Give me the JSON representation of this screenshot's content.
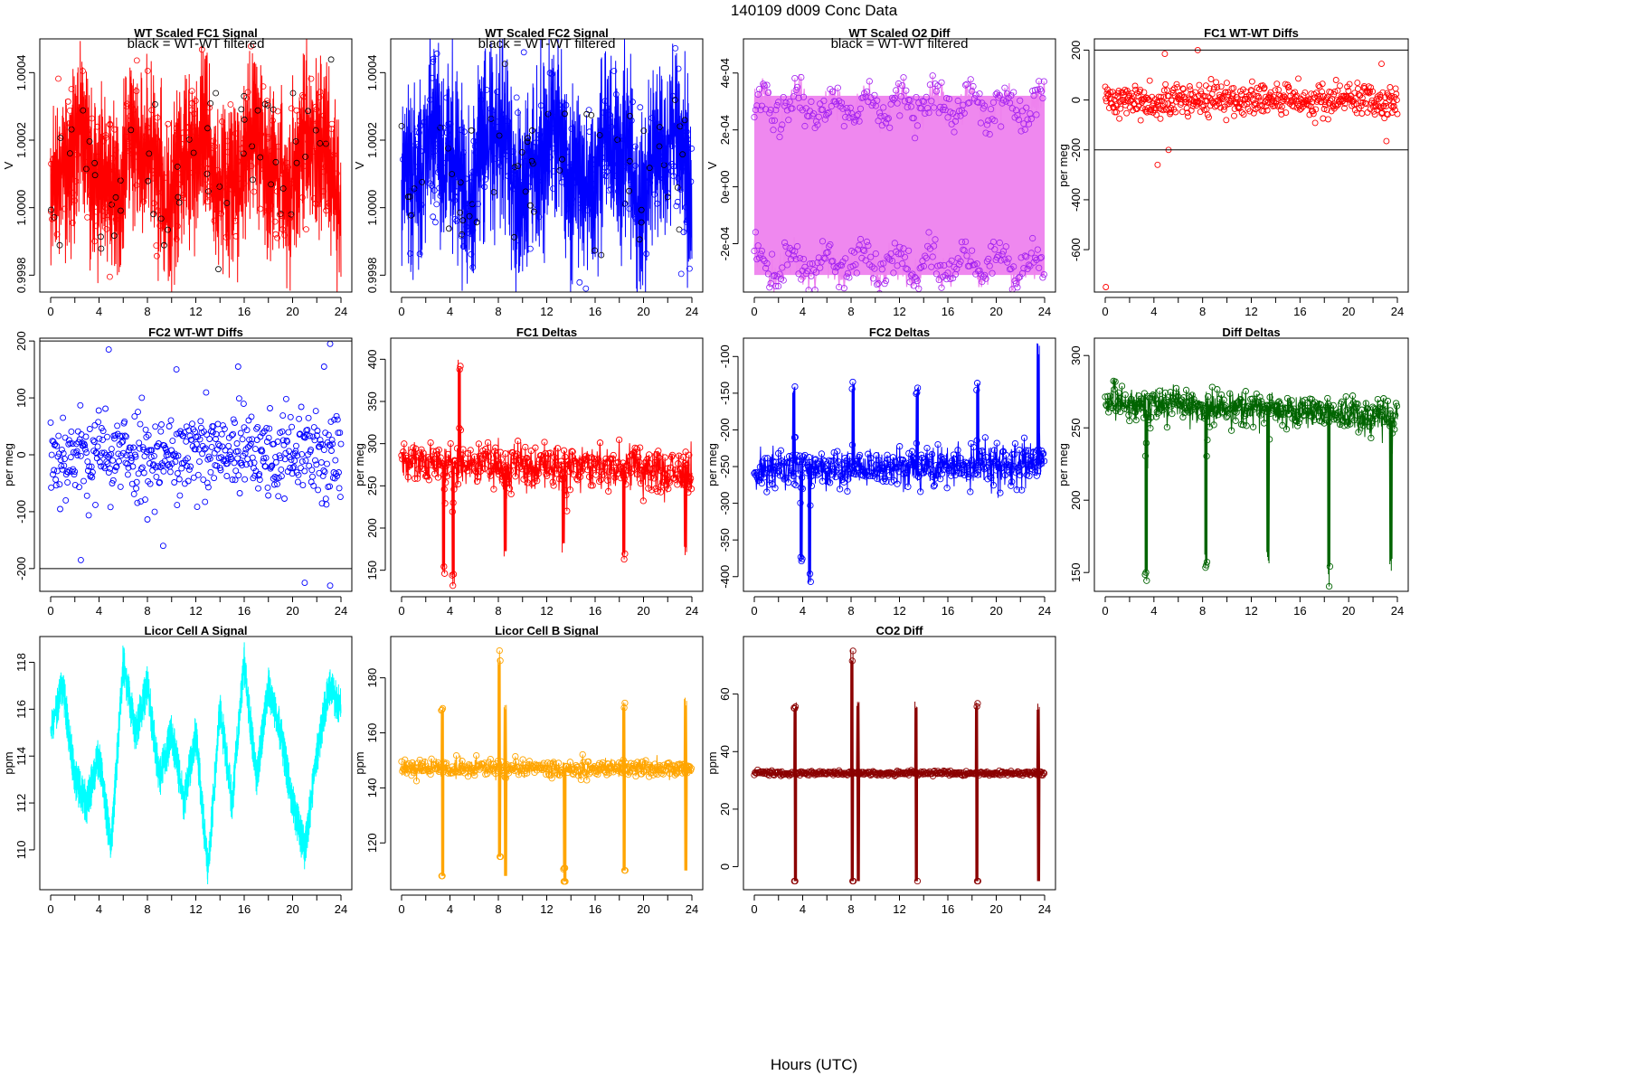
{
  "page": {
    "title": "140109    d009    Conc Data",
    "x_title": "Hours (UTC)"
  },
  "chart_data": [
    {
      "type": "line",
      "title": "WT Scaled FC1 Signal",
      "annotation": "black = WT-WT filtered",
      "ylabel": "V",
      "xlim": [
        0,
        24
      ],
      "ylim": [
        0.99975,
        1.0005
      ],
      "x_ticks": [
        0,
        4,
        8,
        12,
        16,
        20,
        24
      ],
      "x_minor_ticks": [
        2,
        6,
        10,
        14,
        18,
        22
      ],
      "y_ticks": [
        0.9998,
        1.0,
        1.0002,
        1.0004
      ],
      "y_tick_labels": [
        "0.9998",
        "1.0000",
        "1.0002",
        "1.0004"
      ],
      "color": "#ff0000",
      "style": "band",
      "baseline": 1.00013,
      "band_halfwidth": 0.00028,
      "wiggle": 0.00012,
      "noise": 0.0001,
      "marker_color": "#000000",
      "n_points": 520,
      "seed": 11
    },
    {
      "type": "line",
      "title": "WT Scaled FC2 Signal",
      "annotation": "black = WT-WT filtered",
      "ylabel": "V",
      "xlim": [
        0,
        24
      ],
      "ylim": [
        0.99975,
        1.0005
      ],
      "x_ticks": [
        0,
        4,
        8,
        12,
        16,
        20,
        24
      ],
      "x_minor_ticks": [
        2,
        6,
        10,
        14,
        18,
        22
      ],
      "y_ticks": [
        0.9998,
        1.0,
        1.0002,
        1.0004
      ],
      "y_tick_labels": [
        "0.9998",
        "1.0000",
        "1.0002",
        "1.0004"
      ],
      "color": "#0000ff",
      "style": "band",
      "baseline": 1.00013,
      "band_halfwidth": 0.0003,
      "wiggle": 0.00013,
      "noise": 0.00011,
      "marker_color": "#000000",
      "n_points": 520,
      "seed": 23
    },
    {
      "type": "line",
      "title": "WT Scaled O2 Diff",
      "annotation": "black = WT-WT filtered",
      "ylabel": "V",
      "xlim": [
        0,
        24
      ],
      "ylim": [
        -0.00037,
        0.00052
      ],
      "x_ticks": [
        0,
        4,
        8,
        12,
        16,
        20,
        24
      ],
      "x_minor_ticks": [
        2,
        6,
        10,
        14,
        18,
        22
      ],
      "y_ticks": [
        -0.0002,
        0.0,
        0.0002,
        0.0004
      ],
      "y_tick_labels": [
        "-2e-04",
        "0e+00",
        "2e-04",
        "4e-04"
      ],
      "color": "#ee82ee",
      "style": "bimodal",
      "upper_level": 0.00028,
      "lower_level": -0.00027,
      "spread": 4e-05,
      "marker_color": "#a020f0",
      "n_points": 460,
      "seed": 37
    },
    {
      "type": "scatter",
      "title": "FC1 WT-WT Diffs",
      "ylabel": "per meg",
      "xlim": [
        0,
        24
      ],
      "ylim": [
        -770,
        245
      ],
      "x_ticks": [
        0,
        4,
        8,
        12,
        16,
        20,
        24
      ],
      "x_minor_ticks": [
        2,
        6,
        10,
        14,
        18,
        22
      ],
      "y_ticks": [
        -600,
        -400,
        -200,
        0,
        200
      ],
      "y_tick_labels": [
        "-600",
        "-400",
        "-200",
        "0",
        "200"
      ],
      "hlines": [
        200,
        -200
      ],
      "color": "#ff0000",
      "baseline": 0,
      "noise": 32,
      "n_points": 520,
      "seed": 41,
      "extra_points": [
        [
          0.05,
          -750
        ],
        [
          4.3,
          -260
        ],
        [
          7.6,
          200
        ],
        [
          5.2,
          -200
        ],
        [
          4.9,
          185
        ],
        [
          22.7,
          145
        ],
        [
          23.1,
          -165
        ]
      ]
    },
    {
      "type": "scatter",
      "title": "FC2 WT-WT Diffs",
      "ylabel": "per meg",
      "xlim": [
        0,
        24
      ],
      "ylim": [
        -240,
        205
      ],
      "x_ticks": [
        0,
        4,
        8,
        12,
        16,
        20,
        24
      ],
      "x_minor_ticks": [
        2,
        6,
        10,
        14,
        18,
        22
      ],
      "y_ticks": [
        -200,
        -100,
        0,
        100,
        200
      ],
      "y_tick_labels": [
        "-200",
        "-100",
        "0",
        "100",
        "200"
      ],
      "hlines": [
        200,
        -200
      ],
      "color": "#0000ff",
      "baseline": 0,
      "noise": 40,
      "n_points": 520,
      "seed": 53,
      "extra_points": [
        [
          2.5,
          -185
        ],
        [
          4.8,
          185
        ],
        [
          10.4,
          150
        ],
        [
          15.5,
          155
        ],
        [
          21.0,
          -225
        ],
        [
          23.1,
          -230
        ],
        [
          23.1,
          195
        ],
        [
          22.6,
          155
        ],
        [
          9.3,
          -160
        ]
      ]
    },
    {
      "type": "line",
      "title": "FC1 Deltas",
      "ylabel": "per meg",
      "xlim": [
        0,
        24
      ],
      "ylim": [
        125,
        425
      ],
      "x_ticks": [
        0,
        4,
        8,
        12,
        16,
        20,
        24
      ],
      "x_minor_ticks": [
        2,
        6,
        10,
        14,
        18,
        22
      ],
      "y_ticks": [
        150,
        200,
        250,
        300,
        350,
        400
      ],
      "y_tick_labels": [
        "150",
        "200",
        "250",
        "300",
        "350",
        "400"
      ],
      "color": "#ff0000",
      "style": "lineslope",
      "baseline": 278,
      "drift": -10,
      "noise": 13,
      "spike_times": [
        3.5,
        4.3,
        4.8,
        8.6,
        13.4,
        18.4,
        23.5
      ],
      "spike_values": [
        140,
        130,
        400,
        160,
        170,
        160,
        165
      ],
      "n_points": 700,
      "seed": 61
    },
    {
      "type": "line",
      "title": "FC2 Deltas",
      "ylabel": "per meg",
      "xlim": [
        0,
        24
      ],
      "ylim": [
        -420,
        -75
      ],
      "x_ticks": [
        0,
        4,
        8,
        12,
        16,
        20,
        24
      ],
      "x_minor_ticks": [
        2,
        6,
        10,
        14,
        18,
        22
      ],
      "y_ticks": [
        -400,
        -350,
        -300,
        -250,
        -200,
        -150,
        -100
      ],
      "y_tick_labels": [
        "-400",
        "-350",
        "-300",
        "-250",
        "-200",
        "-150",
        "-100"
      ],
      "color": "#0000ff",
      "style": "lineslope",
      "baseline": -255,
      "drift": 8,
      "noise": 14,
      "spike_times": [
        3.3,
        3.9,
        4.6,
        8.2,
        13.5,
        18.5,
        23.5
      ],
      "spike_values": [
        -140,
        -380,
        -410,
        -130,
        -140,
        -135,
        -80
      ],
      "n_points": 700,
      "seed": 71
    },
    {
      "type": "line",
      "title": "Diff Deltas",
      "ylabel": "per meg",
      "xlim": [
        0,
        24
      ],
      "ylim": [
        137,
        312
      ],
      "x_ticks": [
        0,
        4,
        8,
        12,
        16,
        20,
        24
      ],
      "x_minor_ticks": [
        2,
        6,
        10,
        14,
        18,
        22
      ],
      "y_ticks": [
        150,
        200,
        250,
        300
      ],
      "y_tick_labels": [
        "150",
        "200",
        "250",
        "300"
      ],
      "color": "#006400",
      "style": "lineslope",
      "baseline": 268,
      "drift": -10,
      "noise": 6,
      "spike_times": [
        3.4,
        8.3,
        13.4,
        18.4,
        23.5
      ],
      "spike_values": [
        140,
        150,
        155,
        140,
        150
      ],
      "n_points": 700,
      "seed": 83
    },
    {
      "type": "line",
      "title": "Licor Cell A Signal",
      "ylabel": "ppm",
      "xlim": [
        0,
        24
      ],
      "ylim": [
        108.3,
        119.1
      ],
      "x_ticks": [
        0,
        4,
        8,
        12,
        16,
        20,
        24
      ],
      "x_minor_ticks": [
        2,
        6,
        10,
        14,
        18,
        22
      ],
      "y_ticks": [
        110,
        112,
        114,
        116,
        118
      ],
      "y_tick_labels": [
        "110",
        "112",
        "114",
        "116",
        "118"
      ],
      "color": "#00ffff",
      "style": "dense",
      "keyframes": [
        [
          0,
          115
        ],
        [
          1,
          117
        ],
        [
          2,
          113
        ],
        [
          3,
          112
        ],
        [
          4,
          114
        ],
        [
          5,
          110
        ],
        [
          6,
          118
        ],
        [
          7,
          115
        ],
        [
          8,
          117
        ],
        [
          9,
          113
        ],
        [
          10,
          115
        ],
        [
          11,
          112
        ],
        [
          12,
          115
        ],
        [
          13,
          109
        ],
        [
          14,
          116
        ],
        [
          15,
          112
        ],
        [
          16,
          118
        ],
        [
          17,
          113
        ],
        [
          18,
          117
        ],
        [
          19,
          115
        ],
        [
          20,
          112
        ],
        [
          21,
          110
        ],
        [
          22,
          114
        ],
        [
          23,
          117
        ],
        [
          24,
          116
        ]
      ],
      "noise": 0.9,
      "n_points": 900,
      "seed": 97
    },
    {
      "type": "line",
      "title": "Licor Cell B Signal",
      "ylabel": "ppm",
      "xlim": [
        0,
        24
      ],
      "ylim": [
        103,
        195
      ],
      "x_ticks": [
        0,
        4,
        8,
        12,
        16,
        20,
        24
      ],
      "x_minor_ticks": [
        2,
        6,
        10,
        14,
        18,
        22
      ],
      "y_ticks": [
        120,
        140,
        160,
        180
      ],
      "y_tick_labels": [
        "120",
        "140",
        "160",
        "180"
      ],
      "color": "#ffa500",
      "style": "lineslope",
      "baseline": 147,
      "drift": 0,
      "noise": 1.6,
      "spike_times": [
        3.4,
        8.1,
        8.6,
        13.5,
        18.4,
        23.5
      ],
      "spike_values": [
        169,
        190,
        171,
        106,
        172,
        173
      ],
      "spike_lows": [
        108,
        115,
        108,
        106,
        110,
        110
      ],
      "n_points": 700,
      "seed": 107
    },
    {
      "type": "line",
      "title": "CO2 Diff",
      "ylabel": "ppm",
      "xlim": [
        0,
        24
      ],
      "ylim": [
        -8,
        80
      ],
      "x_ticks": [
        0,
        4,
        8,
        12,
        16,
        20,
        24
      ],
      "x_minor_ticks": [
        2,
        6,
        10,
        14,
        18,
        22
      ],
      "y_ticks": [
        0,
        20,
        40,
        60
      ],
      "y_tick_labels": [
        "0",
        "20",
        "40",
        "60"
      ],
      "color": "#8b0000",
      "style": "lineslope",
      "baseline": 32.5,
      "drift": 0,
      "noise": 0.4,
      "spike_times": [
        3.4,
        8.1,
        8.6,
        13.4,
        18.4,
        23.5
      ],
      "spike_values": [
        57.5,
        76,
        57.5,
        57.5,
        57.5,
        57.5
      ],
      "spike_lows": [
        -5,
        -5,
        -5,
        -5,
        -5,
        -5
      ],
      "n_points": 700,
      "seed": 113
    }
  ]
}
